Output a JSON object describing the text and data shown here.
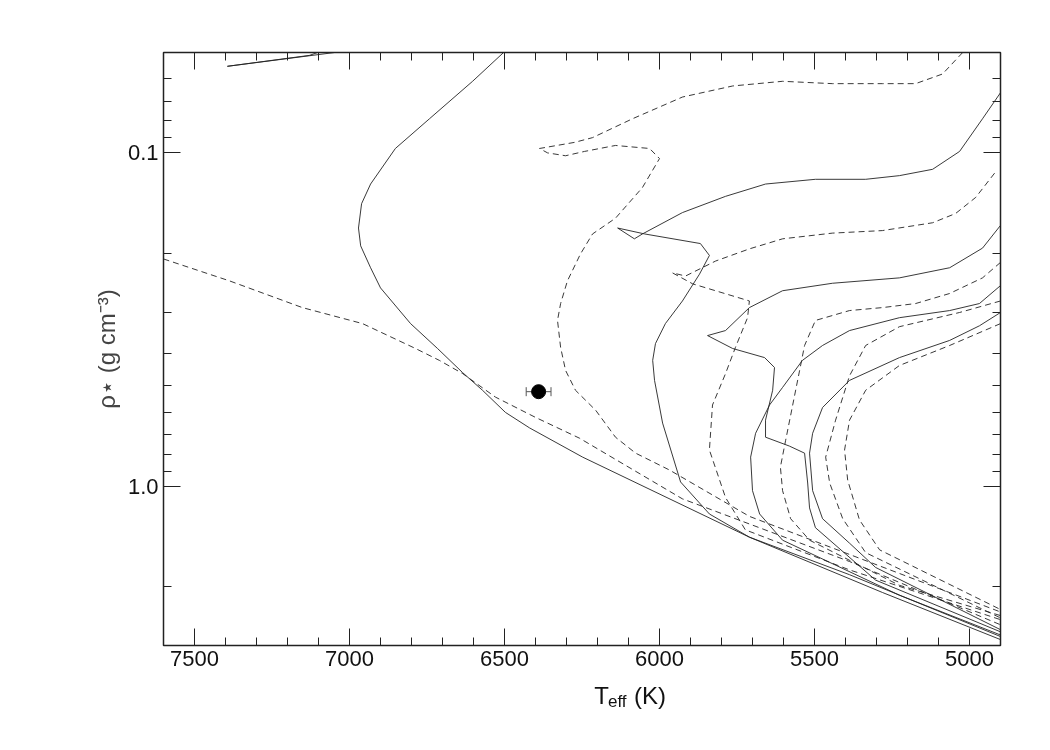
{
  "chart_data": {
    "type": "line",
    "xlabel": "T$_{eff}$ (K)",
    "ylabel": "ρ⋆ (g cm⁻³)",
    "xlim": [
      7600,
      4900
    ],
    "ylim": [
      3.0,
      0.05
    ],
    "log": "y",
    "xticks": [
      7500,
      7000,
      6500,
      6000,
      5500,
      5000
    ],
    "yticks": [
      0.1,
      {
        "value": 1.0,
        "label": "1.0"
      }
    ],
    "grid": false,
    "line_style": "solid",
    "marker": "none",
    "series": [
      {
        "color": "#222222",
        "x": [
          7394,
          7129,
          7103
        ],
        "values": [
          0.055,
          0.051,
          0.05
        ]
      },
      {
        "color": "#222222",
        "x": [
          7394,
          7048
        ],
        "values": [
          0.055,
          0.05
        ]
      },
      {
        "color": "#222222",
        "x": [
          6503,
          6603,
          6742,
          6852,
          6932,
          6961,
          6971,
          6964,
          6932,
          6900,
          6803,
          6716,
          6635,
          6571,
          6497,
          6419,
          6248,
          5710,
          5281,
          4900
        ],
        "values": [
          0.05,
          0.061,
          0.079,
          0.097,
          0.124,
          0.142,
          0.168,
          0.19,
          0.221,
          0.254,
          0.325,
          0.386,
          0.456,
          0.515,
          0.6,
          0.668,
          0.817,
          1.42,
          2.08,
          2.88
        ]
      },
      {
        "color": "#222222",
        "line_style": "dashed",
        "x": [
          7600,
          7387,
          7152,
          6958,
          6787,
          6710,
          6635,
          6529,
          6400,
          6258,
          5926,
          5387,
          4900
        ],
        "values": [
          0.208,
          0.242,
          0.291,
          0.325,
          0.386,
          0.419,
          0.459,
          0.54,
          0.621,
          0.717,
          1.09,
          1.68,
          2.6
        ]
      },
      {
        "color": "#222222",
        "line_style": "dashed",
        "x": [
          5022,
          5087,
          5174,
          5281,
          5442,
          5603,
          5764,
          5926,
          6087,
          6216,
          6274,
          6387,
          6361,
          6303,
          6242,
          6142,
          6032,
          6000,
          6055,
          6142,
          6216,
          6255,
          6297,
          6319,
          6329,
          6319,
          6303,
          6271,
          6206,
          6142,
          6077,
          5968,
          5710,
          5387,
          4900
        ],
        "values": [
          0.05,
          0.058,
          0.062,
          0.062,
          0.062,
          0.061,
          0.063,
          0.068,
          0.079,
          0.09,
          0.093,
          0.097,
          0.1,
          0.102,
          0.099,
          0.095,
          0.097,
          0.104,
          0.127,
          0.157,
          0.175,
          0.201,
          0.242,
          0.283,
          0.318,
          0.383,
          0.449,
          0.515,
          0.591,
          0.712,
          0.795,
          0.893,
          1.23,
          1.6,
          2.38
        ]
      },
      {
        "color": "#222222",
        "x": [
          4900,
          4958,
          5032,
          5119,
          5226,
          5335,
          5497,
          5658,
          5787,
          5926,
          6055,
          6081,
          6135,
          6048,
          5868,
          5839,
          5871,
          5926,
          5981,
          6013,
          6022,
          6016,
          5990,
          5932,
          5839,
          5710,
          5387,
          4900
        ],
        "values": [
          0.066,
          0.079,
          0.099,
          0.112,
          0.117,
          0.12,
          0.12,
          0.124,
          0.135,
          0.151,
          0.175,
          0.181,
          0.168,
          0.175,
          0.187,
          0.203,
          0.231,
          0.278,
          0.325,
          0.373,
          0.419,
          0.481,
          0.646,
          0.97,
          1.21,
          1.42,
          1.84,
          2.82
        ]
      },
      {
        "color": "#222222",
        "line_style": "dashed",
        "x": [
          4919,
          4980,
          5045,
          5119,
          5281,
          5442,
          5603,
          5710,
          5819,
          5916,
          5958,
          5893,
          5710,
          5716,
          5755,
          5787,
          5829,
          5839,
          5787,
          5723,
          5387,
          4900
        ],
        "values": [
          0.115,
          0.136,
          0.152,
          0.162,
          0.171,
          0.174,
          0.181,
          0.194,
          0.211,
          0.234,
          0.229,
          0.247,
          0.278,
          0.312,
          0.383,
          0.459,
          0.57,
          0.778,
          1.08,
          1.35,
          1.78,
          2.51
        ]
      },
      {
        "color": "#222222",
        "x": [
          4900,
          4958,
          5064,
          5226,
          5442,
          5603,
          5710,
          5787,
          5845,
          5764,
          5661,
          5629,
          5635,
          5658,
          5658,
          5581,
          5532,
          5522,
          5516,
          5497,
          5303,
          4900
        ],
        "values": [
          0.165,
          0.193,
          0.221,
          0.237,
          0.246,
          0.259,
          0.291,
          0.341,
          0.353,
          0.386,
          0.411,
          0.44,
          0.515,
          0.633,
          0.712,
          0.757,
          0.795,
          0.977,
          1.16,
          1.33,
          1.91,
          2.73
        ]
      },
      {
        "color": "#222222",
        "line_style": "dashed",
        "x": [
          4900,
          4958,
          5064,
          5174,
          5281,
          5387,
          5497,
          5532,
          5548,
          5593,
          5610,
          5603,
          5577,
          5516,
          5226,
          4900
        ],
        "values": [
          0.213,
          0.237,
          0.264,
          0.283,
          0.291,
          0.297,
          0.318,
          0.378,
          0.449,
          0.727,
          0.875,
          1.03,
          1.25,
          1.45,
          1.98,
          2.44
        ]
      },
      {
        "color": "#222222",
        "x": [
          4900,
          4968,
          5064,
          5226,
          5387,
          5474,
          5539,
          5603,
          5645,
          5690,
          5706,
          5700,
          5677,
          5603,
          5226,
          4900
        ],
        "values": [
          0.25,
          0.283,
          0.297,
          0.312,
          0.341,
          0.378,
          0.419,
          0.505,
          0.57,
          0.693,
          0.817,
          1.03,
          1.21,
          1.45,
          2.12,
          2.79
        ]
      },
      {
        "color": "#222222",
        "line_style": "dashed",
        "x": [
          4900,
          5032,
          5226,
          5335,
          5387,
          5432,
          5464,
          5451,
          5409,
          5335,
          4900
        ],
        "values": [
          0.278,
          0.301,
          0.332,
          0.378,
          0.466,
          0.633,
          0.817,
          0.977,
          1.25,
          1.58,
          2.48
        ]
      },
      {
        "color": "#222222",
        "x": [
          4900,
          4968,
          5064,
          5226,
          5387,
          5474,
          5506,
          5516,
          5506,
          5474,
          5387,
          5303,
          4900
        ],
        "values": [
          0.301,
          0.33,
          0.365,
          0.411,
          0.481,
          0.58,
          0.693,
          0.795,
          1.03,
          1.25,
          1.48,
          1.75,
          2.69
        ]
      },
      {
        "color": "#222222",
        "line_style": "dashed",
        "x": [
          4900,
          5064,
          5226,
          5335,
          5387,
          5403,
          5393,
          5355,
          5290,
          4900
        ],
        "values": [
          0.325,
          0.378,
          0.434,
          0.515,
          0.633,
          0.778,
          0.957,
          1.26,
          1.55,
          2.34
        ]
      },
      {
        "type": "scatter",
        "color": "#000000",
        "marker": "circle",
        "x": [
          6390
        ],
        "values": [
          0.52
        ],
        "xerrors": [
          40
        ]
      }
    ]
  }
}
